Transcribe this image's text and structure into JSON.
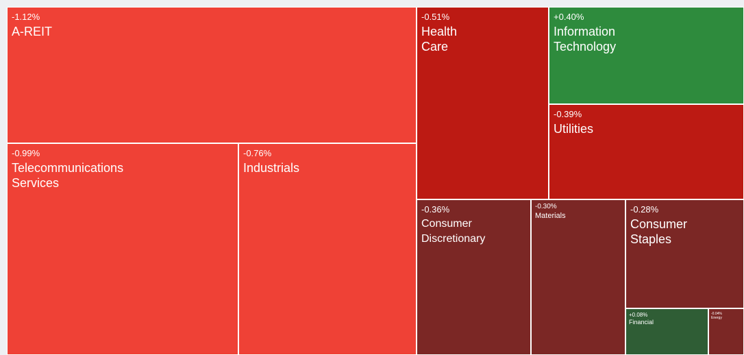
{
  "chart_data": {
    "type": "treemap",
    "title": "",
    "sectors": [
      {
        "id": "a-reit",
        "name": "A-REIT",
        "change": "-1.12%",
        "value": -1.12,
        "color": "#ef4136"
      },
      {
        "id": "telecommunications-services",
        "name": "Telecommunications\nServices",
        "change": "-0.99%",
        "value": -0.99,
        "color": "#ef4136"
      },
      {
        "id": "industrials",
        "name": "Industrials",
        "change": "-0.76%",
        "value": -0.76,
        "color": "#ef4136"
      },
      {
        "id": "health-care",
        "name": "Health\nCare",
        "change": "-0.51%",
        "value": -0.51,
        "color": "#bc1a13"
      },
      {
        "id": "information-technology",
        "name": "Information\nTechnology",
        "change": "+0.40%",
        "value": 0.4,
        "color": "#2e8b3d"
      },
      {
        "id": "utilities",
        "name": "Utilities",
        "change": "-0.39%",
        "value": -0.39,
        "color": "#bc1a13"
      },
      {
        "id": "consumer-discretionary",
        "name": "Consumer\nDiscretionary",
        "change": "-0.36%",
        "value": -0.36,
        "color": "#7b2725"
      },
      {
        "id": "materials",
        "name": "Materials",
        "change": "-0.30%",
        "value": -0.3,
        "color": "#7b2725"
      },
      {
        "id": "consumer-staples",
        "name": "Consumer\nStaples",
        "change": "-0.28%",
        "value": -0.28,
        "color": "#7b2725"
      },
      {
        "id": "financial",
        "name": "Financial",
        "change": "+0.08%",
        "value": 0.08,
        "color": "#2f5d35"
      },
      {
        "id": "energy",
        "name": "Energy",
        "change": "-0.04%",
        "value": -0.04,
        "color": "#7b2725"
      }
    ]
  }
}
